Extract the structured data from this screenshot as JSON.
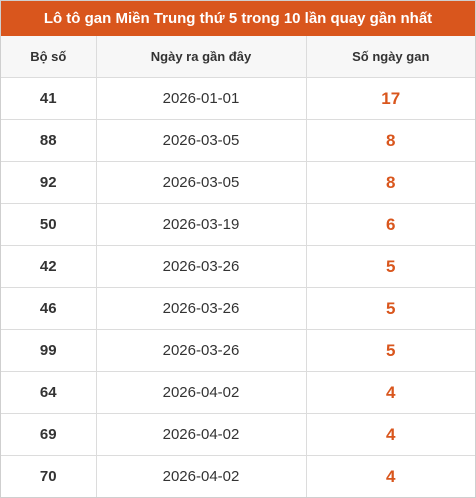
{
  "header": {
    "title": "Lô tô gan Miền Trung thứ 5 trong 10 lần quay gần nhất"
  },
  "table": {
    "columns": [
      "Bộ số",
      "Ngày ra gần đây",
      "Số ngày gan"
    ],
    "rows": [
      [
        "41",
        "2026-01-01",
        "17"
      ],
      [
        "88",
        "2026-03-05",
        "8"
      ],
      [
        "92",
        "2026-03-05",
        "8"
      ],
      [
        "50",
        "2026-03-19",
        "6"
      ],
      [
        "42",
        "2026-03-26",
        "5"
      ],
      [
        "46",
        "2026-03-26",
        "5"
      ],
      [
        "99",
        "2026-03-26",
        "5"
      ],
      [
        "64",
        "2026-04-02",
        "4"
      ],
      [
        "69",
        "2026-04-02",
        "4"
      ],
      [
        "70",
        "2026-04-02",
        "4"
      ]
    ]
  }
}
